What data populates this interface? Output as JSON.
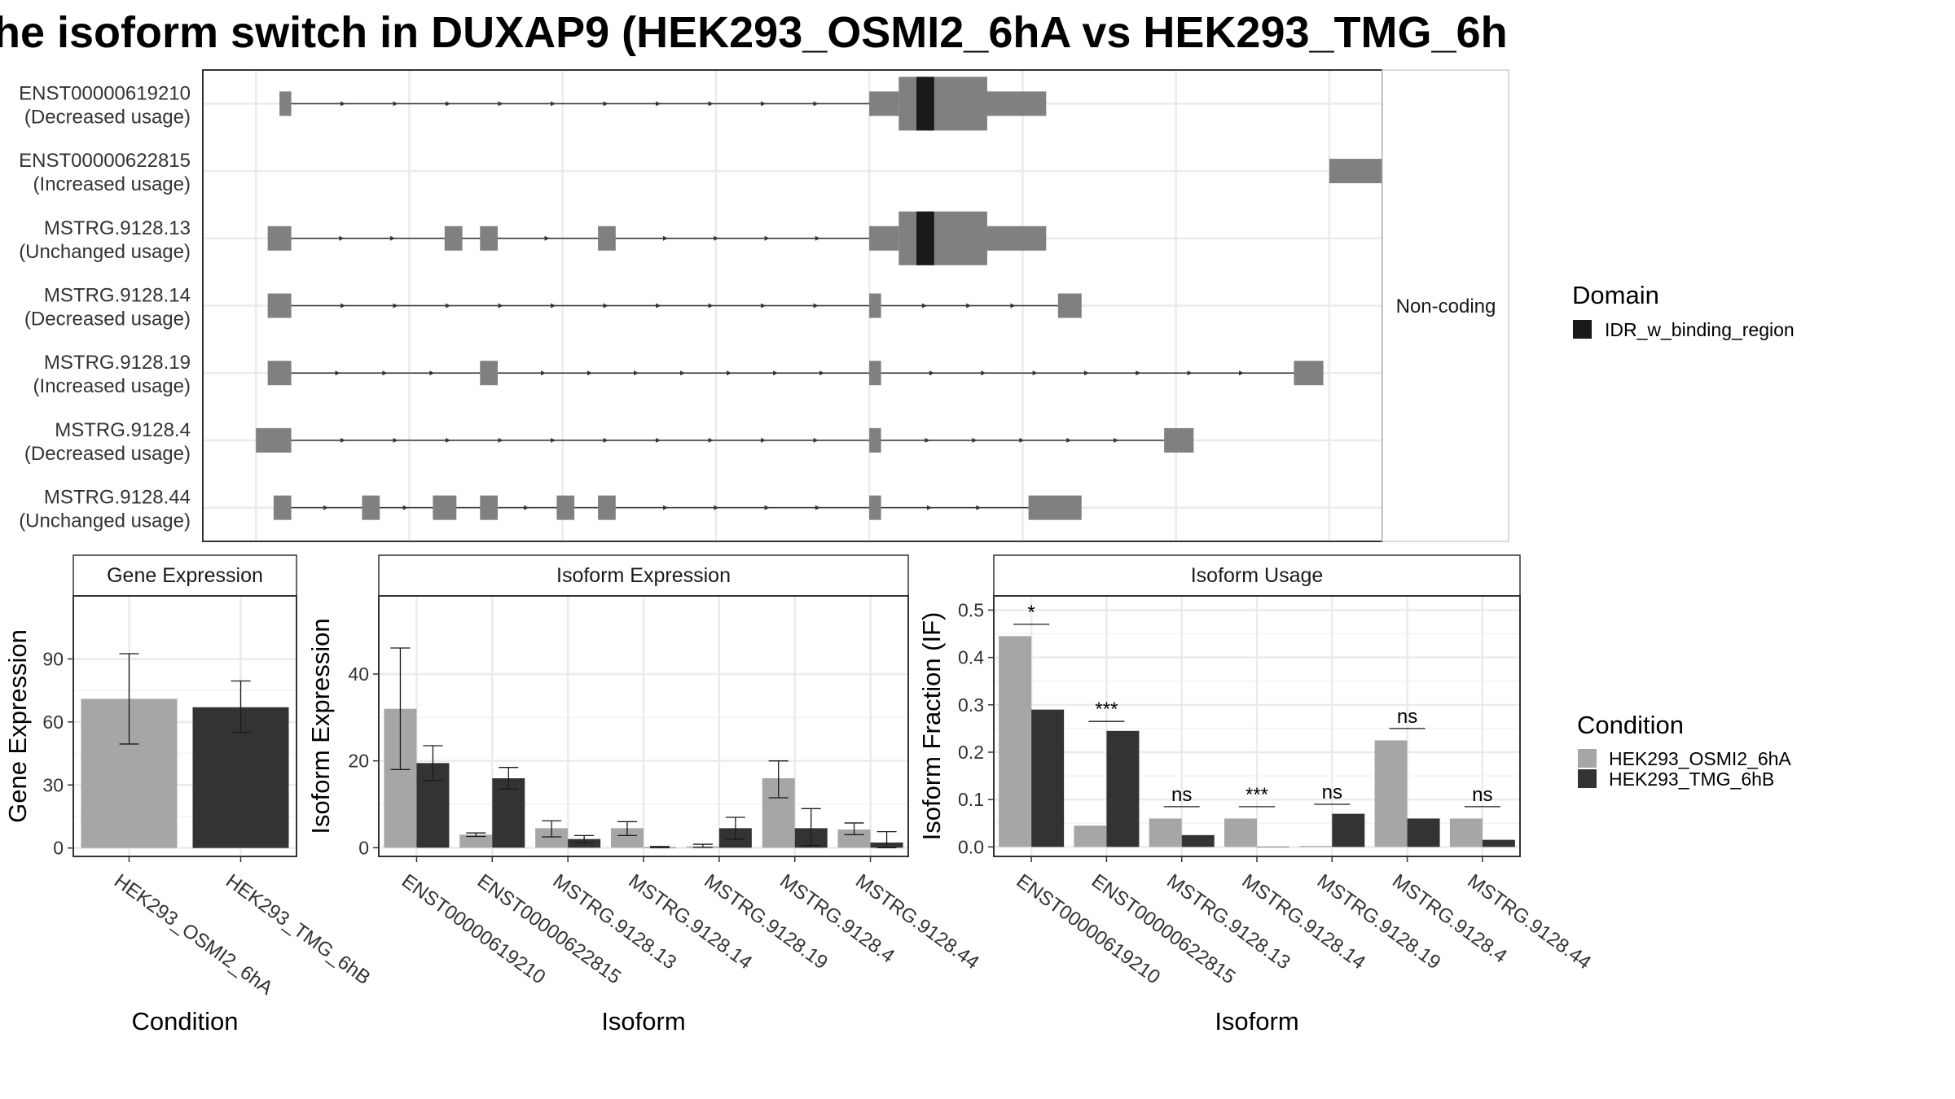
{
  "figure": {
    "title": "he isoform switch in DUXAP9 (HEK293_OSMI2_6hA vs HEK293_TMG_6h",
    "colors": {
      "exon": "#808080",
      "domain": "#1a1a1a",
      "condA": "#a6a6a6",
      "condB": "#333333",
      "grid": "#ebebeb",
      "panelBorder": "#333333",
      "intron": "#333333"
    }
  },
  "chart_data": [
    {
      "type": "gene-structure",
      "side_label": "Non-coding",
      "legend": {
        "title": "Domain",
        "items": [
          {
            "label": "IDR_w_binding_region",
            "color": "#1a1a1a"
          }
        ]
      },
      "xlim": [
        0,
        100
      ],
      "gridlines": [
        4.5,
        17.5,
        30.5,
        43.5,
        56.5,
        69.5,
        82.5,
        95.5
      ],
      "transcripts": [
        {
          "name": "ENST00000619210",
          "usage": "(Decreased usage)",
          "exons": [
            [
              6.5,
              7.5
            ],
            [
              56.5,
              59
            ],
            [
              59,
              66.5
            ],
            [
              66.5,
              71.5
            ]
          ],
          "tall": [
            [
              59,
              66.5
            ]
          ],
          "domain": [
            [
              60.5,
              62
            ]
          ]
        },
        {
          "name": "ENST00000622815",
          "usage": "(Increased usage)",
          "exons": [
            [
              95.5,
              100
            ]
          ],
          "tall": [],
          "domain": []
        },
        {
          "name": "MSTRG.9128.13",
          "usage": "(Unchanged usage)",
          "exons": [
            [
              5.5,
              7.5
            ],
            [
              20.5,
              22
            ],
            [
              23.5,
              25
            ],
            [
              33.5,
              35
            ],
            [
              56.5,
              59
            ],
            [
              59,
              66.5
            ],
            [
              66.5,
              71.5
            ]
          ],
          "tall": [
            [
              59,
              66.5
            ]
          ],
          "domain": [
            [
              60.5,
              62
            ]
          ]
        },
        {
          "name": "MSTRG.9128.14",
          "usage": "(Decreased usage)",
          "exons": [
            [
              5.5,
              7.5
            ],
            [
              56.5,
              57.5
            ],
            [
              72.5,
              74.5
            ]
          ],
          "tall": [],
          "domain": []
        },
        {
          "name": "MSTRG.9128.19",
          "usage": "(Increased usage)",
          "exons": [
            [
              5.5,
              7.5
            ],
            [
              23.5,
              25
            ],
            [
              56.5,
              57.5
            ],
            [
              92.5,
              95
            ]
          ],
          "tall": [],
          "domain": []
        },
        {
          "name": "MSTRG.9128.4",
          "usage": "(Decreased usage)",
          "exons": [
            [
              4.5,
              7.5
            ],
            [
              56.5,
              57.5
            ],
            [
              81.5,
              84
            ]
          ],
          "tall": [],
          "domain": []
        },
        {
          "name": "MSTRG.9128.44",
          "usage": "(Unchanged usage)",
          "exons": [
            [
              6,
              7.5
            ],
            [
              13.5,
              15
            ],
            [
              19.5,
              21.5
            ],
            [
              23.5,
              25
            ],
            [
              30,
              31.5
            ],
            [
              33.5,
              35
            ],
            [
              56.5,
              57.5
            ],
            [
              70,
              74.5
            ]
          ],
          "tall": [],
          "domain": []
        }
      ]
    },
    {
      "type": "bar",
      "strip": "Gene Expression",
      "xlabel": "Condition",
      "ylabel": "Gene Expression",
      "ylim": [
        -4,
        120
      ],
      "yticks": [
        0,
        30,
        60,
        90
      ],
      "categories": [
        "HEK293_OSMI2_6hA",
        "HEK293_TMG_6hB"
      ],
      "series": [
        {
          "values": [
            71,
            67
          ],
          "errors": [
            [
              49.5,
              92.5
            ],
            [
              55,
              79.5
            ]
          ]
        }
      ]
    },
    {
      "type": "bar",
      "strip": "Isoform Expression",
      "xlabel": "Isoform",
      "ylabel": "Isoform Expression",
      "ylim": [
        -2,
        58
      ],
      "yticks": [
        0,
        20,
        40
      ],
      "categories": [
        "ENST00000619210",
        "ENST00000622815",
        "MSTRG.9128.13",
        "MSTRG.9128.14",
        "MSTRG.9128.19",
        "MSTRG.9128.4",
        "MSTRG.9128.44"
      ],
      "series": [
        {
          "name": "HEK293_OSMI2_6hA",
          "values": [
            32,
            3,
            4.5,
            4.5,
            0.3,
            16,
            4.2
          ],
          "errors": [
            [
              18,
              46
            ],
            [
              2.6,
              3.4
            ],
            [
              2.5,
              6.2
            ],
            [
              2.8,
              6
            ],
            [
              0.1,
              0.8
            ],
            [
              11.5,
              20
            ],
            [
              3,
              5.7
            ]
          ]
        },
        {
          "name": "HEK293_TMG_6hB",
          "values": [
            19.5,
            16,
            2,
            0.1,
            4.5,
            4.5,
            1.2
          ],
          "errors": [
            [
              15.5,
              23.5
            ],
            [
              13.5,
              18.5
            ],
            [
              1.2,
              2.8
            ],
            [
              0,
              0.3
            ],
            [
              2,
              7
            ],
            [
              0.5,
              9
            ],
            [
              0,
              3.7
            ]
          ]
        }
      ]
    },
    {
      "type": "bar",
      "strip": "Isoform Usage",
      "xlabel": "Isoform",
      "ylabel": "Isoform Fraction (IF)",
      "ylim": [
        -0.02,
        0.53
      ],
      "yticks": [
        0,
        0.1,
        0.2,
        0.3,
        0.4,
        0.5
      ],
      "ytick_labels": [
        "0.0",
        "0.1",
        "0.2",
        "0.3",
        "0.4",
        "0.5"
      ],
      "categories": [
        "ENST00000619210",
        "ENST00000622815",
        "MSTRG.9128.13",
        "MSTRG.9128.14",
        "MSTRG.9128.19",
        "MSTRG.9128.4",
        "MSTRG.9128.44"
      ],
      "series": [
        {
          "name": "HEK293_OSMI2_6hA",
          "values": [
            0.445,
            0.045,
            0.06,
            0.06,
            0.002,
            0.225,
            0.06
          ]
        },
        {
          "name": "HEK293_TMG_6hB",
          "values": [
            0.29,
            0.245,
            0.025,
            0.0,
            0.07,
            0.06,
            0.015
          ]
        }
      ],
      "significance": [
        {
          "label": "*",
          "y": 0.47
        },
        {
          "label": "***",
          "y": 0.265
        },
        {
          "label": "ns",
          "y": 0.085
        },
        {
          "label": "***",
          "y": 0.085
        },
        {
          "label": "ns",
          "y": 0.09
        },
        {
          "label": "ns",
          "y": 0.25
        },
        {
          "label": "ns",
          "y": 0.085
        }
      ],
      "legend": {
        "title": "Condition",
        "items": [
          {
            "label": "HEK293_OSMI2_6hA",
            "color": "#a6a6a6"
          },
          {
            "label": "HEK293_TMG_6hB",
            "color": "#333333"
          }
        ]
      }
    }
  ]
}
